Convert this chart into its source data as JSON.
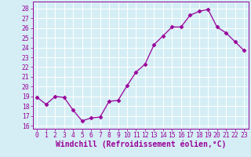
{
  "x": [
    0,
    1,
    2,
    3,
    4,
    5,
    6,
    7,
    8,
    9,
    10,
    11,
    12,
    13,
    14,
    15,
    16,
    17,
    18,
    19,
    20,
    21,
    22,
    23
  ],
  "y": [
    18.9,
    18.2,
    19.0,
    18.9,
    17.6,
    16.5,
    16.8,
    16.9,
    18.5,
    18.6,
    20.1,
    21.5,
    22.3,
    24.3,
    25.2,
    26.1,
    26.1,
    27.3,
    27.7,
    27.9,
    26.1,
    25.5,
    24.6,
    23.7
  ],
  "line_color": "#990099",
  "marker": "D",
  "marker_size": 2.5,
  "xlim": [
    -0.5,
    23.5
  ],
  "ylim": [
    15.7,
    28.7
  ],
  "yticks": [
    16,
    17,
    18,
    19,
    20,
    21,
    22,
    23,
    24,
    25,
    26,
    27,
    28
  ],
  "xticks": [
    0,
    1,
    2,
    3,
    4,
    5,
    6,
    7,
    8,
    9,
    10,
    11,
    12,
    13,
    14,
    15,
    16,
    17,
    18,
    19,
    20,
    21,
    22,
    23
  ],
  "xlabel": "Windchill (Refroidissement éolien,°C)",
  "background_color": "#d5eef5",
  "grid_color": "#ffffff",
  "tick_label_fontsize": 5.8,
  "xlabel_fontsize": 7.0
}
